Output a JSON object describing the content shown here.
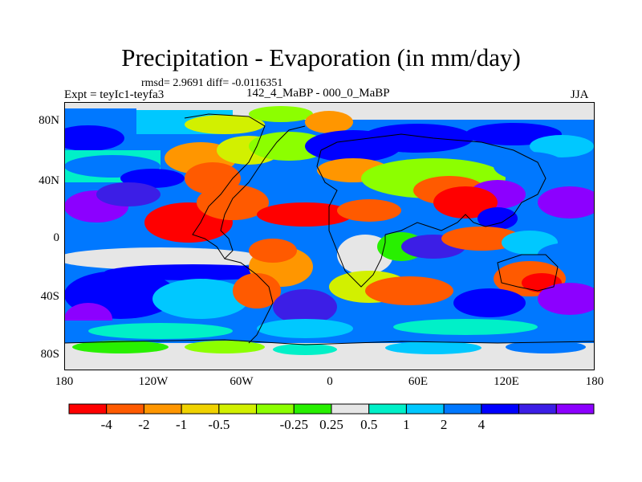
{
  "title": "Precipitation - Evaporation (in mm/day)",
  "stats_line": "rmsd= 2.9691 diff= -0.0116351",
  "periods_line": "142_4_MaBP - 000_0_MaBP",
  "experiment": "Expt = teyIc1-teyfa3",
  "season": "JJA",
  "lat_ticks": [
    "80N",
    "40N",
    "0",
    "40S",
    "80S"
  ],
  "lon_ticks": [
    "180",
    "120W",
    "60W",
    "0",
    "60E",
    "120E",
    "180"
  ],
  "colorbar": {
    "colors": [
      "#ff0000",
      "#ff5a00",
      "#ff9600",
      "#f0d200",
      "#d2f000",
      "#8cff00",
      "#28f000",
      "#e6e6e6",
      "#00f0c8",
      "#00c8ff",
      "#0078ff",
      "#0000ff",
      "#3c1ee6",
      "#8c00ff"
    ],
    "labels": [
      "-4",
      "-2",
      "-1",
      "-0.5",
      "-0.25",
      "0.25",
      "0.5",
      "1",
      "2",
      "4"
    ]
  }
}
